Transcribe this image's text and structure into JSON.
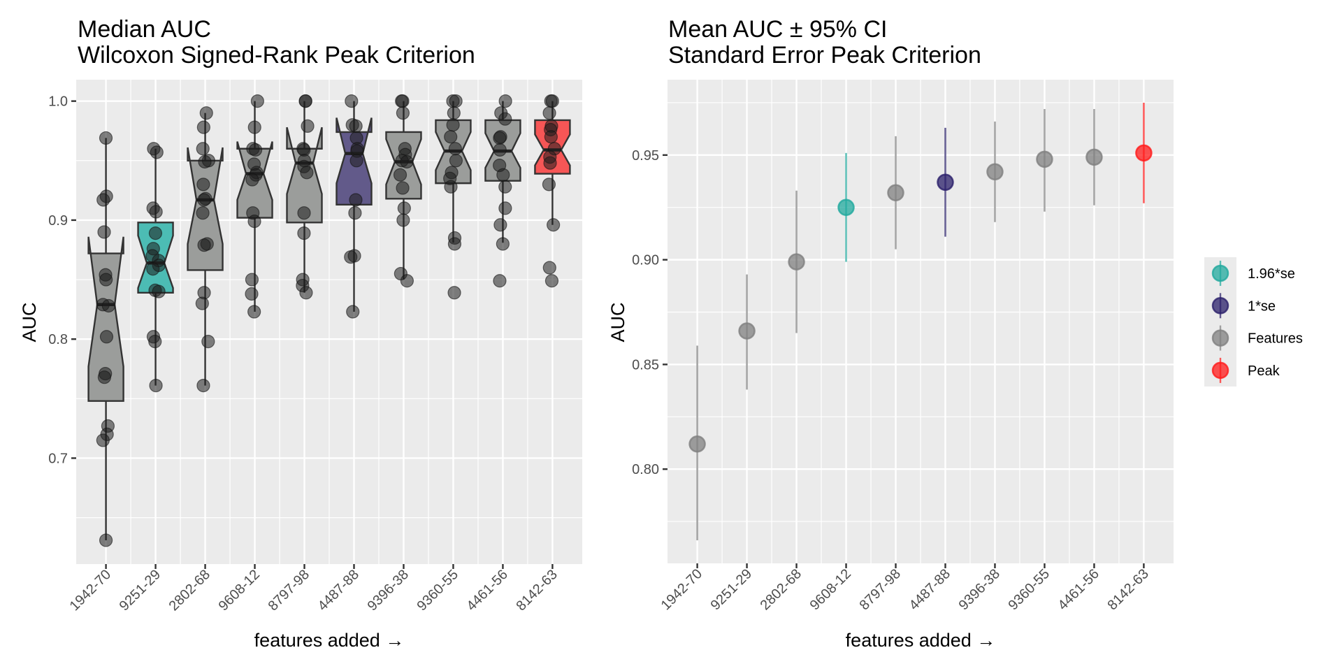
{
  "chart_data": [
    {
      "type": "box",
      "title": "Median AUC",
      "subtitle": "Wilcoxon Signed-Rank Peak Criterion",
      "xlabel": "features added →",
      "ylabel": "AUC",
      "ylim": [
        0.611,
        1.018
      ],
      "yticks": [
        0.7,
        0.8,
        0.9,
        1.0
      ],
      "ytick_labels": [
        "0.7",
        "0.8",
        "0.9",
        "1.0"
      ],
      "grid": true,
      "categories": [
        "1942-70",
        "9251-29",
        "2802-68",
        "9608-12",
        "8797-98",
        "4487-88",
        "9396-38",
        "9360-55",
        "4461-56",
        "8142-63"
      ],
      "boxes": [
        {
          "group": "Features",
          "whisker_low": 0.631,
          "q1": 0.748,
          "median": 0.829,
          "q3": 0.872,
          "whisker_high": 0.969,
          "notch_low": 0.777,
          "notch_high": 0.886,
          "points": [
            0.969,
            0.92,
            0.917,
            0.89,
            0.854,
            0.85,
            0.829,
            0.828,
            0.802,
            0.771,
            0.768,
            0.727,
            0.72,
            0.715,
            0.631
          ]
        },
        {
          "group": "1.96*se",
          "whisker_low": 0.761,
          "q1": 0.839,
          "median": 0.864,
          "q3": 0.898,
          "whisker_high": 0.96,
          "notch_low": 0.843,
          "notch_high": 0.887,
          "points": [
            0.96,
            0.957,
            0.91,
            0.907,
            0.889,
            0.876,
            0.87,
            0.866,
            0.862,
            0.859,
            0.841,
            0.84,
            0.802,
            0.798,
            0.761
          ]
        },
        {
          "group": "Features",
          "whisker_low": 0.761,
          "q1": 0.858,
          "median": 0.917,
          "q3": 0.95,
          "whisker_high": 0.99,
          "notch_low": 0.88,
          "notch_high": 0.961,
          "points": [
            0.99,
            0.978,
            0.96,
            0.95,
            0.949,
            0.93,
            0.918,
            0.917,
            0.906,
            0.88,
            0.879,
            0.839,
            0.83,
            0.798,
            0.761
          ]
        },
        {
          "group": "Features",
          "whisker_low": 0.823,
          "q1": 0.902,
          "median": 0.939,
          "q3": 0.96,
          "whisker_high": 1.0,
          "notch_low": 0.917,
          "notch_high": 0.966,
          "points": [
            1.0,
            0.978,
            0.96,
            0.959,
            0.947,
            0.94,
            0.938,
            0.934,
            0.906,
            0.899,
            0.85,
            0.838,
            0.823
          ]
        },
        {
          "group": "Features",
          "whisker_low": 0.839,
          "q1": 0.898,
          "median": 0.948,
          "q3": 0.96,
          "whisker_high": 1.0,
          "notch_low": 0.922,
          "notch_high": 0.978,
          "points": [
            1.0,
            1.0,
            0.979,
            0.96,
            0.959,
            0.95,
            0.945,
            0.94,
            0.906,
            0.889,
            0.85,
            0.845,
            0.839
          ]
        },
        {
          "group": "1*se",
          "whisker_low": 0.823,
          "q1": 0.913,
          "median": 0.956,
          "q3": 0.974,
          "whisker_high": 1.0,
          "notch_low": 0.931,
          "notch_high": 0.986,
          "points": [
            1.0,
            0.98,
            0.979,
            0.969,
            0.96,
            0.958,
            0.95,
            0.917,
            0.906,
            0.87,
            0.869,
            0.823
          ]
        },
        {
          "group": "Features",
          "whisker_low": 0.85,
          "q1": 0.918,
          "median": 0.949,
          "q3": 0.974,
          "whisker_high": 1.0,
          "notch_low": 0.93,
          "notch_high": 0.968,
          "points": [
            1.0,
            1.0,
            0.99,
            0.96,
            0.955,
            0.95,
            0.949,
            0.938,
            0.927,
            0.91,
            0.9,
            0.855,
            0.849
          ]
        },
        {
          "group": "Features",
          "whisker_low": 0.881,
          "q1": 0.931,
          "median": 0.958,
          "q3": 0.984,
          "whisker_high": 1.0,
          "notch_low": 0.942,
          "notch_high": 0.974,
          "points": [
            1.0,
            1.0,
            0.99,
            0.98,
            0.97,
            0.96,
            0.95,
            0.94,
            0.935,
            0.928,
            0.885,
            0.88,
            0.839
          ]
        },
        {
          "group": "Features",
          "whisker_low": 0.881,
          "q1": 0.933,
          "median": 0.958,
          "q3": 0.984,
          "whisker_high": 1.0,
          "notch_low": 0.944,
          "notch_high": 0.973,
          "points": [
            1.0,
            0.99,
            0.985,
            0.97,
            0.969,
            0.959,
            0.946,
            0.938,
            0.928,
            0.91,
            0.896,
            0.88,
            0.849
          ]
        },
        {
          "group": "Peak",
          "whisker_low": 0.896,
          "q1": 0.939,
          "median": 0.959,
          "q3": 0.984,
          "whisker_high": 1.0,
          "notch_low": 0.946,
          "notch_high": 0.972,
          "points": [
            1.0,
            1.0,
            0.99,
            0.979,
            0.976,
            0.97,
            0.96,
            0.953,
            0.948,
            0.93,
            0.896,
            0.86,
            0.849
          ]
        }
      ]
    },
    {
      "type": "errorbar",
      "title": "Mean AUC ± 95% CI",
      "subtitle": "Standard Error Peak Criterion",
      "xlabel": "features added →",
      "ylabel": "AUC",
      "ylim": [
        0.755,
        0.986
      ],
      "yticks": [
        0.8,
        0.85,
        0.9,
        0.95
      ],
      "ytick_labels": [
        "0.80",
        "0.85",
        "0.90",
        "0.95"
      ],
      "grid": true,
      "legend_position": "right",
      "categories": [
        "1942-70",
        "9251-29",
        "2802-68",
        "9608-12",
        "8797-98",
        "4487-88",
        "9396-38",
        "9360-55",
        "4461-56",
        "8142-63"
      ],
      "series": [
        {
          "category": "1942-70",
          "group": "Features",
          "mean": 0.812,
          "ci_low": 0.766,
          "ci_high": 0.859
        },
        {
          "category": "9251-29",
          "group": "Features",
          "mean": 0.866,
          "ci_low": 0.838,
          "ci_high": 0.893
        },
        {
          "category": "2802-68",
          "group": "Features",
          "mean": 0.899,
          "ci_low": 0.865,
          "ci_high": 0.933
        },
        {
          "category": "9608-12",
          "group": "1.96*se",
          "mean": 0.925,
          "ci_low": 0.899,
          "ci_high": 0.951
        },
        {
          "category": "8797-98",
          "group": "Features",
          "mean": 0.932,
          "ci_low": 0.905,
          "ci_high": 0.959
        },
        {
          "category": "4487-88",
          "group": "1*se",
          "mean": 0.937,
          "ci_low": 0.911,
          "ci_high": 0.963
        },
        {
          "category": "9396-38",
          "group": "Features",
          "mean": 0.942,
          "ci_low": 0.918,
          "ci_high": 0.966
        },
        {
          "category": "9360-55",
          "group": "Features",
          "mean": 0.948,
          "ci_low": 0.923,
          "ci_high": 0.972
        },
        {
          "category": "4461-56",
          "group": "Features",
          "mean": 0.949,
          "ci_low": 0.926,
          "ci_high": 0.972
        },
        {
          "category": "8142-63",
          "group": "Peak",
          "mean": 0.951,
          "ci_low": 0.927,
          "ci_high": 0.975
        }
      ],
      "legend": [
        {
          "label": "1.96*se",
          "color": "#20a99e"
        },
        {
          "label": "1*se",
          "color": "#2a1f6a"
        },
        {
          "label": "Features",
          "color": "#808080"
        },
        {
          "label": "Peak",
          "color": "#ff1a1a"
        }
      ]
    }
  ],
  "colors": {
    "box_fill": {
      "Features": "#9b9d9b",
      "1.96*se": "#4cbcb4",
      "1*se": "#625a8a",
      "Peak": "#f65656"
    },
    "point_fill": {
      "Features": "#808080",
      "1.96*se": "#20a99e",
      "1*se": "#2a1f6a",
      "Peak": "#ff1a1a"
    },
    "panel_bg": "#ebebeb",
    "grid": "#ffffff",
    "box_stroke": "#333333",
    "jitter_point": "#333333"
  }
}
